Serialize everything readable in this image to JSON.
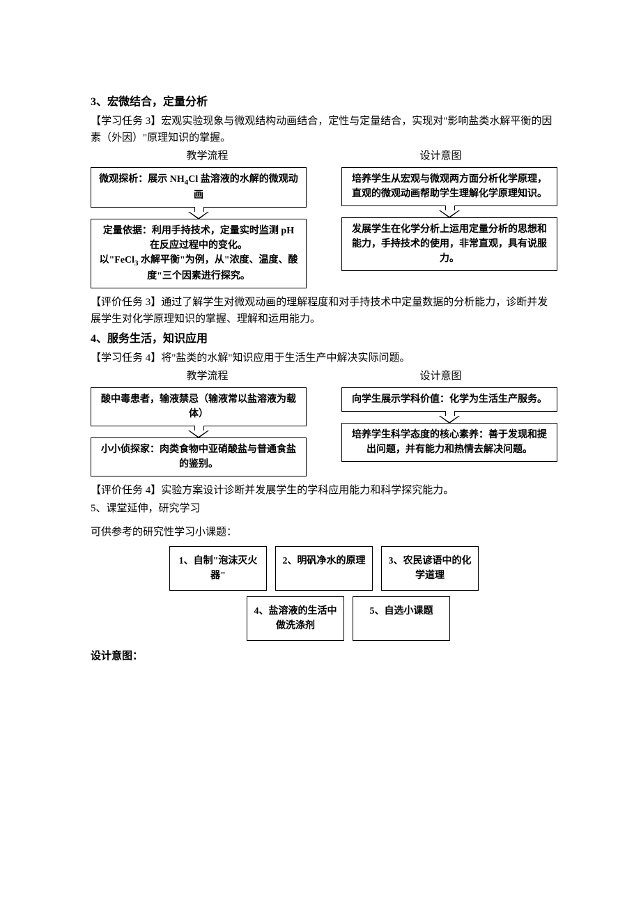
{
  "section3": {
    "heading": "3、宏微结合，定量分析",
    "task_label": "【学习任务 3】",
    "task_text": "宏观实验现象与微观结构动画结合，定性与定量结合，实现对\"影响盐类水解平衡的因素（外因）\"原理知识的掌握。",
    "col_left_title": "教学流程",
    "col_right_title": "设计意图",
    "left_box1": "微观探析：展示 NH₄Cl 盐溶液的水解的微观动画",
    "left_box2_l1": "定量依据：利用手持技术，定量实时监测 pH在反应过程中的变化。",
    "left_box2_l2": "以\"FeCl₃ 水解平衡\"为例，从\"浓度、温度、酸度\"三个因素进行探究。",
    "right_box1": "培养学生从宏观与微观两方面分析化学原理，直观的微观动画帮助学生理解化学原理知识。",
    "right_box2": "发展学生在化学分析上运用定量分析的思想和能力，手持技术的使用，非常直观，具有说服力。",
    "eval_label": "【评价任务 3】",
    "eval_text": "通过了解学生对微观动画的理解程度和对手持技术中定量数据的分析能力，诊断并发展学生对化学原理知识的掌握、理解和运用能力。"
  },
  "section4": {
    "heading": "4、服务生活，知识应用",
    "task_label": "【学习任务 4】",
    "task_text": "将\"盐类的水解\"知识应用于生活生产中解决实际问题。",
    "col_left_title": "教学流程",
    "col_right_title": "设计意图",
    "left_box1": "酸中毒患者，输液禁忌（输液常以盐溶液为载体）",
    "left_box2": "小小侦探家：肉类食物中亚硝酸盐与普通食盐的鉴别。",
    "right_box1": "向学生展示学科价值：化学为生活生产服务。",
    "right_box2": "培养学生科学态度的核心素养：善于发现和提出问题，并有能力和热情去解决问题。",
    "eval_label": "【评价任务 4】",
    "eval_text": "实验方案设计诊断并发展学生的学科应用能力和科学探究能力。"
  },
  "section5": {
    "heading": "5、课堂延伸，研究学习",
    "intro": "可供参考的研究性学习小课题：",
    "topics": [
      "1、自制\"泡沫灭火器\"",
      "2、明矾净水的原理",
      "3、农民谚语中的化学道理",
      "4、盐溶液的生活中做洗涤剂",
      "5、自选小课题"
    ],
    "design_label": "设计意图："
  }
}
